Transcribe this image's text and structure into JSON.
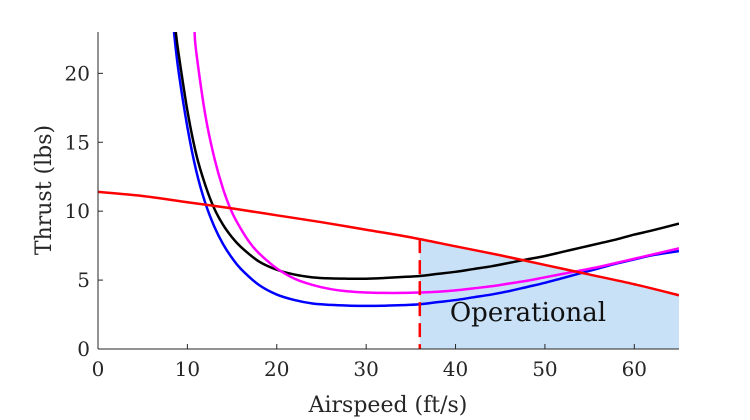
{
  "chart_data": {
    "type": "line",
    "title": "",
    "xlabel": "Airspeed (ft/s)",
    "ylabel": "Thrust (lbs)",
    "xlim": [
      0,
      65
    ],
    "ylim": [
      0,
      23
    ],
    "xticks": [
      0,
      10,
      20,
      30,
      40,
      50,
      60
    ],
    "yticks": [
      0,
      5,
      10,
      15,
      20
    ],
    "grid": false,
    "legend": "none",
    "series": [
      {
        "color": "#0000ff",
        "x": [
          8.5,
          9,
          10,
          11,
          12,
          13,
          14,
          15,
          16,
          18,
          20,
          22,
          24,
          26,
          28,
          30,
          31,
          32,
          34,
          36,
          38,
          40,
          42,
          44,
          46,
          48,
          50,
          52,
          54,
          56,
          58,
          60,
          62,
          65
        ],
        "y": [
          23,
          20.2,
          16.1,
          12.9,
          10.6,
          8.9,
          7.6,
          6.6,
          5.8,
          4.65,
          3.95,
          3.55,
          3.3,
          3.2,
          3.15,
          3.13,
          3.13,
          3.14,
          3.18,
          3.25,
          3.4,
          3.55,
          3.75,
          3.95,
          4.2,
          4.5,
          4.8,
          5.15,
          5.5,
          5.85,
          6.2,
          6.5,
          6.8,
          7.1
        ]
      },
      {
        "color": "#000000",
        "x": [
          8.7,
          9,
          10,
          11,
          12,
          13,
          14,
          15,
          16,
          18,
          20,
          22,
          24,
          26,
          28,
          30,
          32,
          34,
          36,
          38,
          40,
          42,
          44,
          46,
          48,
          50,
          52,
          54,
          56,
          58,
          60,
          62,
          65
        ],
        "y": [
          23,
          21.5,
          17.3,
          14.1,
          11.9,
          10.2,
          9.0,
          8.1,
          7.4,
          6.35,
          5.75,
          5.4,
          5.2,
          5.12,
          5.1,
          5.1,
          5.15,
          5.22,
          5.3,
          5.45,
          5.6,
          5.8,
          6.0,
          6.25,
          6.5,
          6.75,
          7.05,
          7.35,
          7.65,
          7.95,
          8.3,
          8.6,
          9.1
        ]
      },
      {
        "color": "#ff00ff",
        "x": [
          10.8,
          11,
          12,
          13,
          14,
          15,
          16,
          17,
          18,
          20,
          22,
          24,
          26,
          28,
          30,
          32,
          34,
          36,
          38,
          40,
          42,
          44,
          46,
          48,
          50,
          52,
          54,
          56,
          58,
          60,
          62,
          65
        ],
        "y": [
          23,
          21.5,
          17.0,
          13.9,
          11.6,
          9.9,
          8.7,
          7.7,
          6.95,
          5.85,
          5.1,
          4.65,
          4.35,
          4.18,
          4.1,
          4.07,
          4.07,
          4.1,
          4.15,
          4.25,
          4.4,
          4.55,
          4.75,
          4.95,
          5.2,
          5.45,
          5.7,
          5.95,
          6.25,
          6.55,
          6.85,
          7.3
        ]
      },
      {
        "color": "#ff0000",
        "x": [
          0,
          5,
          10,
          15,
          20,
          25,
          30,
          35,
          40,
          45,
          50,
          55,
          60,
          65
        ],
        "y": [
          11.4,
          11.1,
          10.65,
          10.2,
          9.7,
          9.2,
          8.65,
          8.1,
          7.45,
          6.8,
          6.1,
          5.4,
          4.7,
          3.9
        ]
      }
    ],
    "vline": {
      "x": 36,
      "color": "#ff0000",
      "style": "dashed"
    },
    "shaded_region": {
      "label": "Operational",
      "color": "#c8e1f7",
      "x_start": 36,
      "x_end": 65,
      "lower_series_index": 0,
      "upper_series_index": 3
    }
  }
}
